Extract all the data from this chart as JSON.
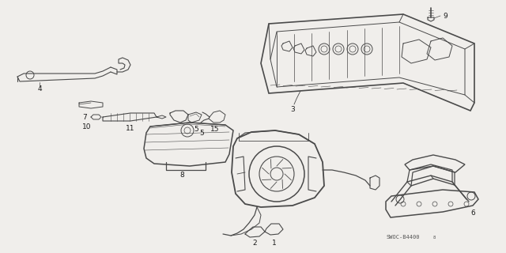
{
  "bg_color": "#f0eeeb",
  "line_color": "#4a4a4a",
  "text_color": "#1a1a1a",
  "fig_width": 6.4,
  "fig_height": 3.2,
  "dpi": 100,
  "watermark": "SWOC-B4400",
  "label_fs": 6.5,
  "lw_main": 0.9,
  "lw_detail": 0.55
}
